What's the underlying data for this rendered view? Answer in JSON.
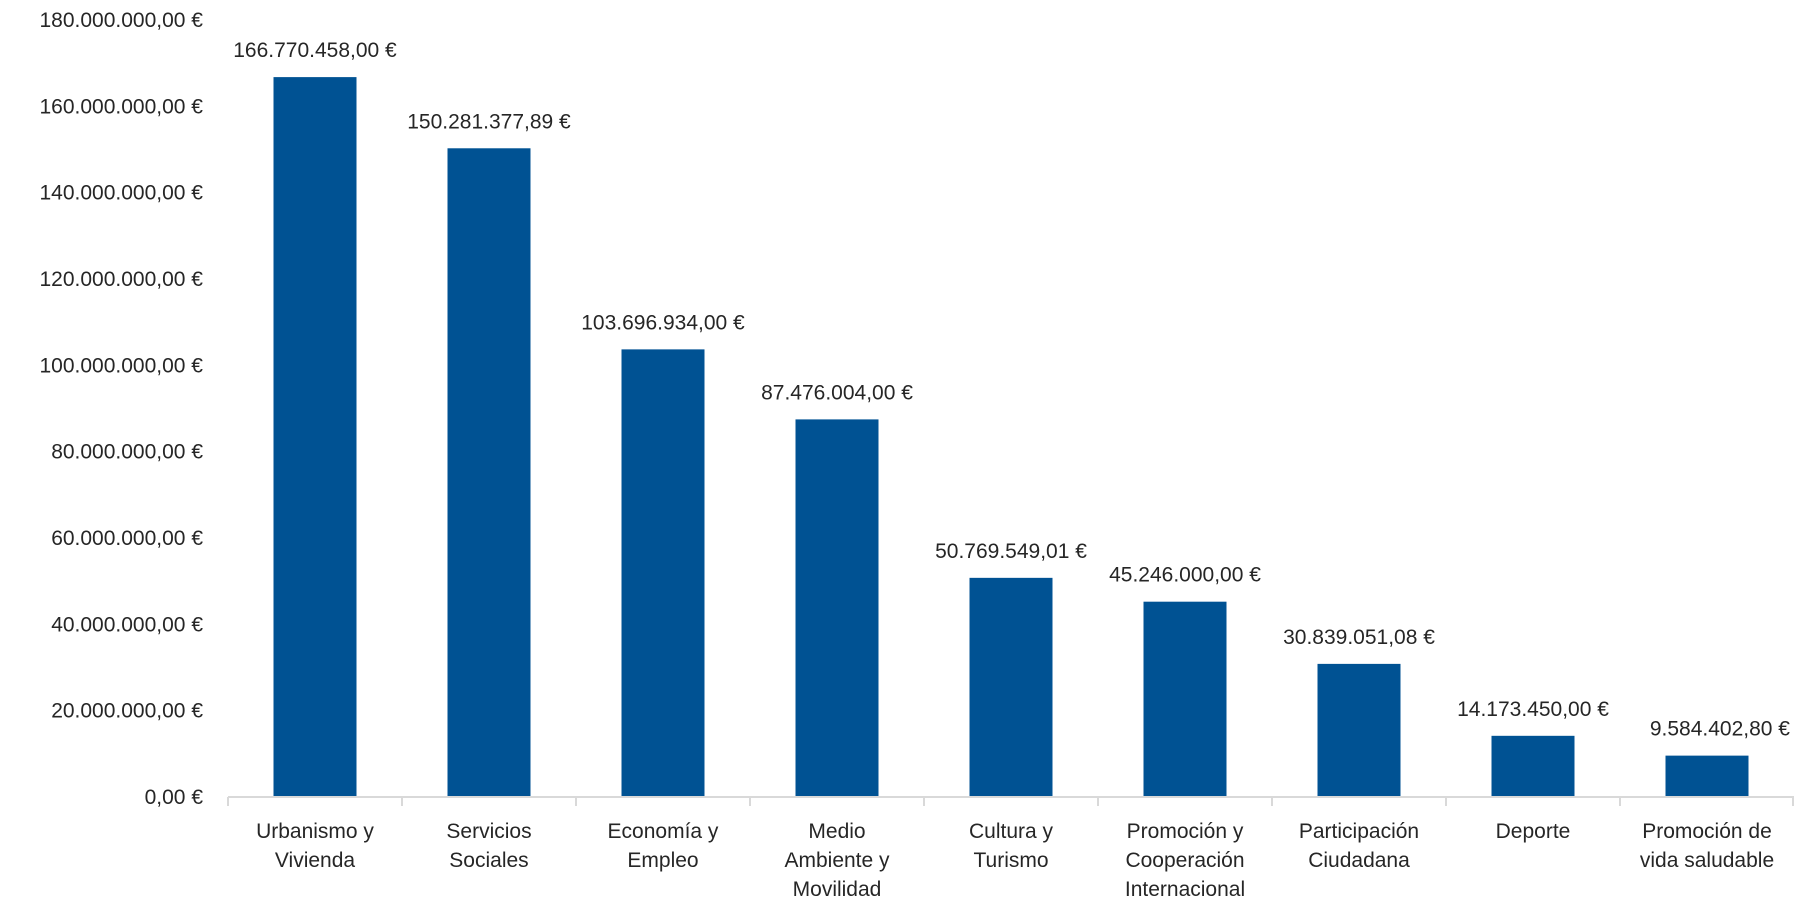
{
  "chart_data": {
    "type": "bar",
    "title": "",
    "xlabel": "",
    "ylabel": "",
    "categories": [
      [
        "Urbanismo y",
        "Vivienda"
      ],
      [
        "Servicios",
        "Sociales"
      ],
      [
        "Economía y",
        "Empleo"
      ],
      [
        "Medio",
        "Ambiente y",
        "Movilidad"
      ],
      [
        "Cultura y",
        "Turismo"
      ],
      [
        "Promoción y",
        "Cooperación",
        "Internacional"
      ],
      [
        "Participación",
        "Ciudadana"
      ],
      [
        "Deporte"
      ],
      [
        "Promoción de",
        "vida saludable"
      ]
    ],
    "values": [
      166770458.0,
      150281377.89,
      103696934.0,
      87476004.0,
      50769549.01,
      45246000.0,
      30839051.08,
      14173450.0,
      9584402.8
    ],
    "value_labels": [
      "166.770.458,00 €",
      "150.281.377,89 €",
      "103.696.934,00 €",
      "87.476.004,00 €",
      "50.769.549,01 €",
      "45.246.000,00 €",
      "30.839.051,08 €",
      "14.173.450,00 €",
      "9.584.402,80 €"
    ],
    "ylim": [
      0,
      180000000
    ],
    "y_ticks": [
      0,
      20000000,
      40000000,
      60000000,
      80000000,
      100000000,
      120000000,
      140000000,
      160000000,
      180000000
    ],
    "y_tick_labels": [
      "0,00 €",
      "20.000.000,00 €",
      "40.000.000,00 €",
      "60.000.000,00 €",
      "80.000.000,00 €",
      "100.000.000,00 €",
      "120.000.000,00 €",
      "140.000.000,00 €",
      "160.000.000,00 €",
      "180.000.000,00 €"
    ],
    "grid": false,
    "legend": "none",
    "bar_color": "#005293",
    "axis_color": "#d9d9d9",
    "text_color": "#262626"
  }
}
